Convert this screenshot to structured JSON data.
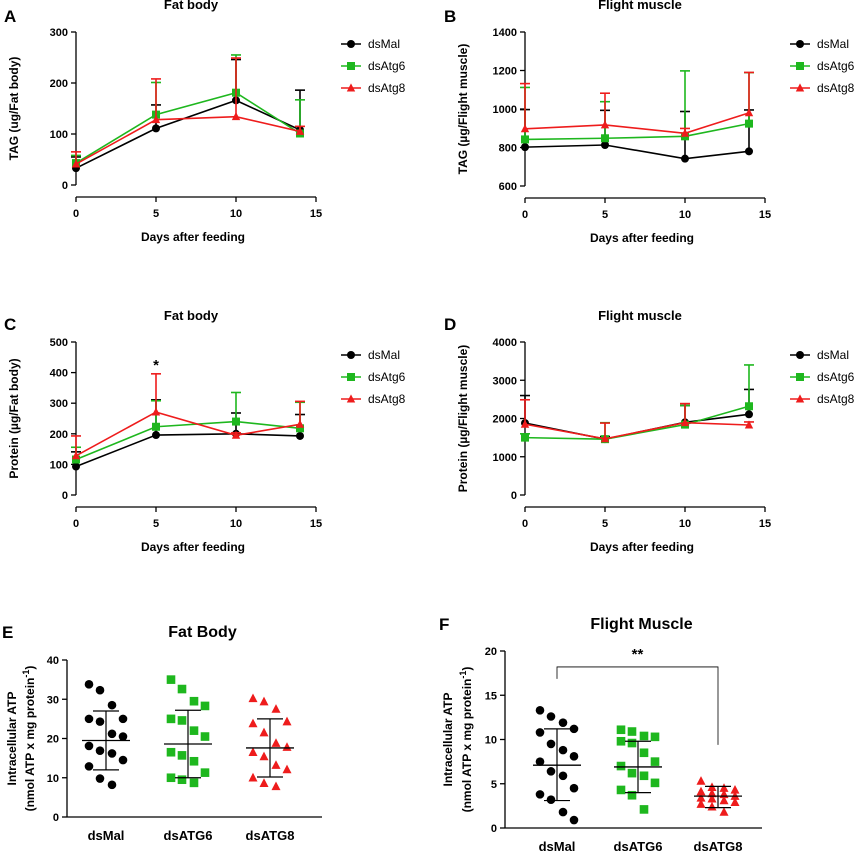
{
  "colors": {
    "dsMal": "#000000",
    "dsAtg6": "#1eb71e",
    "dsAtg8": "#ee1c1c"
  },
  "chart_data": [
    {
      "id": "A",
      "panel_label": "A",
      "type": "line",
      "title": "Fat body",
      "xlabel": "Days after feeding",
      "ylabel": "TAG (ug/Fat body)",
      "xlim": [
        0,
        15
      ],
      "ylim": [
        0,
        300
      ],
      "xticks": [
        "0",
        "5",
        "10",
        "15"
      ],
      "yticks": [
        "0",
        "100",
        "200",
        "300"
      ],
      "x": [
        0,
        5,
        10,
        14
      ],
      "legend_position": "right",
      "series": [
        {
          "name": "dsMal",
          "color": "dsMal",
          "marker": "circle",
          "values": [
            33,
            111,
            166,
            108
          ],
          "errors": [
            22,
            46,
            80,
            78
          ]
        },
        {
          "name": "dsAtg6",
          "color": "dsAtg6",
          "marker": "square",
          "values": [
            43,
            138,
            181,
            101
          ],
          "errors": [
            15,
            63,
            74,
            66
          ]
        },
        {
          "name": "dsAtg8",
          "color": "dsAtg8",
          "marker": "triangle",
          "values": [
            41,
            128,
            134,
            105
          ],
          "errors": [
            24,
            80,
            115,
            10
          ]
        }
      ]
    },
    {
      "id": "B",
      "panel_label": "B",
      "type": "line",
      "title": "Flight muscle",
      "xlabel": "Days after feeding",
      "ylabel": "TAG (µg/Flight muscle)",
      "xlim": [
        0,
        15
      ],
      "ylim": [
        600,
        1400
      ],
      "xticks": [
        "0",
        "5",
        "10",
        "15"
      ],
      "yticks": [
        "600",
        "800",
        "1000",
        "1200",
        "1400"
      ],
      "x": [
        0,
        5,
        10,
        14
      ],
      "legend_position": "right",
      "series": [
        {
          "name": "dsMal",
          "color": "dsMal",
          "marker": "circle",
          "values": [
            802,
            813,
            742,
            780
          ],
          "errors": [
            195,
            180,
            245,
            215
          ]
        },
        {
          "name": "dsAtg6",
          "color": "dsAtg6",
          "marker": "square",
          "values": [
            842,
            848,
            858,
            924
          ],
          "errors": [
            270,
            190,
            340,
            265
          ]
        },
        {
          "name": "dsAtg8",
          "color": "dsAtg8",
          "marker": "triangle",
          "values": [
            897,
            917,
            874,
            980
          ],
          "errors": [
            235,
            165,
            25,
            210
          ]
        }
      ]
    },
    {
      "id": "C",
      "panel_label": "C",
      "type": "line",
      "title": "Fat body",
      "xlabel": "Days after feeding",
      "ylabel": "Protein (µg/Fat body)",
      "xlim": [
        0,
        15
      ],
      "ylim": [
        0,
        500
      ],
      "xticks": [
        "0",
        "5",
        "10",
        "15"
      ],
      "yticks": [
        "0",
        "100",
        "200",
        "300",
        "400",
        "500"
      ],
      "x": [
        0,
        5,
        10,
        14
      ],
      "legend_position": "right",
      "annotation": {
        "text": "*",
        "x": 5,
        "y": 408
      },
      "series": [
        {
          "name": "dsMal",
          "color": "dsMal",
          "marker": "circle",
          "values": [
            93,
            196,
            200,
            193
          ],
          "errors": [
            48,
            115,
            68,
            70
          ]
        },
        {
          "name": "dsAtg6",
          "color": "dsAtg6",
          "marker": "square",
          "values": [
            116,
            223,
            240,
            218
          ],
          "errors": [
            40,
            85,
            95,
            85
          ]
        },
        {
          "name": "dsAtg8",
          "color": "dsAtg8",
          "marker": "triangle",
          "values": [
            128,
            271,
            195,
            231
          ],
          "errors": [
            65,
            125,
            8,
            75
          ]
        }
      ]
    },
    {
      "id": "D",
      "panel_label": "D",
      "type": "line",
      "title": "Flight muscle",
      "xlabel": "Days after feeding",
      "ylabel": "Protein (µg/Flight muscle)",
      "xlim": [
        0,
        15
      ],
      "ylim": [
        0,
        4000
      ],
      "xticks": [
        "0",
        "5",
        "10",
        "15"
      ],
      "yticks": [
        "0",
        "1000",
        "2000",
        "3000",
        "4000"
      ],
      "x": [
        0,
        5,
        10,
        14
      ],
      "legend_position": "right",
      "series": [
        {
          "name": "dsMal",
          "color": "dsMal",
          "marker": "circle",
          "values": [
            1880,
            1460,
            1900,
            2110
          ],
          "errors": [
            720,
            70,
            440,
            650
          ]
        },
        {
          "name": "dsAtg6",
          "color": "dsAtg6",
          "marker": "square",
          "values": [
            1500,
            1460,
            1840,
            2320
          ],
          "errors": [
            100,
            430,
            500,
            1080
          ]
        },
        {
          "name": "dsAtg8",
          "color": "dsAtg8",
          "marker": "triangle",
          "values": [
            1850,
            1470,
            1890,
            1830
          ],
          "errors": [
            640,
            410,
            500,
            80
          ]
        }
      ]
    },
    {
      "id": "E",
      "panel_label": "E",
      "type": "scatter",
      "title": "Fat Body",
      "ylabel_line1": "Intracellular ATP",
      "ylabel_line2": "(nmol ATP x mg protein",
      "ylabel_sup": "-1",
      "ylabel_end": ")",
      "ylim": [
        0,
        40
      ],
      "yticks": [
        "0",
        "10",
        "20",
        "30",
        "40"
      ],
      "categories": [
        "dsMal",
        "dsATG6",
        "dsATG8"
      ],
      "groups": [
        {
          "name": "dsMal",
          "color": "dsMal",
          "marker": "circle",
          "mean": 19.5,
          "sd_low": 12.0,
          "sd_high": 27.0,
          "values": [
            33.8,
            32.3,
            28.5,
            25.0,
            25.0,
            24.3,
            21.2,
            20.5,
            18.1,
            16.9,
            16.2,
            14.5,
            12.9,
            9.8,
            8.2
          ]
        },
        {
          "name": "dsATG6",
          "color": "dsAtg6",
          "marker": "square",
          "values": [
            35.0,
            32.6,
            29.5,
            28.3,
            25.0,
            24.6,
            22.0,
            20.5,
            16.5,
            15.7,
            14.2,
            11.3,
            10.0,
            9.5,
            8.7
          ],
          "mean": 18.6,
          "sd_low": 10.0,
          "sd_high": 27.2
        },
        {
          "name": "dsATG8",
          "color": "dsAtg8",
          "marker": "triangle",
          "values": [
            30.2,
            29.4,
            27.5,
            24.3,
            23.8,
            21.5,
            18.8,
            17.8,
            16.5,
            15.4,
            13.2,
            12.1,
            10.0,
            8.6,
            7.8
          ],
          "mean": 17.6,
          "sd_low": 10.2,
          "sd_high": 25.0
        }
      ]
    },
    {
      "id": "F",
      "panel_label": "F",
      "type": "scatter",
      "title": "Flight Muscle",
      "ylabel_line1": "Intracellular ATP",
      "ylabel_line2": "(nmol ATP x mg protein",
      "ylabel_sup": "-1",
      "ylabel_end": ")",
      "ylim": [
        0,
        20
      ],
      "yticks": [
        "0",
        "5",
        "10",
        "15",
        "20"
      ],
      "categories": [
        "dsMal",
        "dsATG6",
        "dsATG8"
      ],
      "significance": {
        "text": "**",
        "from": 0,
        "to": 2,
        "y": 18.2
      },
      "groups": [
        {
          "name": "dsMal",
          "color": "dsMal",
          "marker": "circle",
          "mean": 7.1,
          "sd_low": 3.1,
          "sd_high": 11.2,
          "values": [
            13.3,
            12.6,
            11.9,
            11.2,
            10.8,
            9.5,
            8.8,
            8.1,
            7.5,
            6.4,
            5.9,
            4.5,
            3.8,
            3.2,
            1.8,
            0.9
          ]
        },
        {
          "name": "dsATG6",
          "color": "dsAtg6",
          "marker": "square",
          "mean": 6.9,
          "sd_low": 4.0,
          "sd_high": 9.8,
          "values": [
            11.1,
            10.9,
            10.4,
            10.3,
            9.8,
            9.6,
            8.5,
            7.5,
            7.0,
            6.2,
            5.9,
            5.1,
            4.3,
            3.7,
            2.1
          ]
        },
        {
          "name": "dsATG8",
          "color": "dsAtg8",
          "marker": "triangle",
          "mean": 3.6,
          "sd_low": 2.3,
          "sd_high": 4.7,
          "values": [
            5.3,
            4.6,
            4.5,
            4.3,
            4.1,
            3.9,
            3.8,
            3.6,
            3.4,
            3.3,
            3.1,
            2.9,
            2.7,
            2.4,
            1.8
          ]
        }
      ]
    }
  ]
}
